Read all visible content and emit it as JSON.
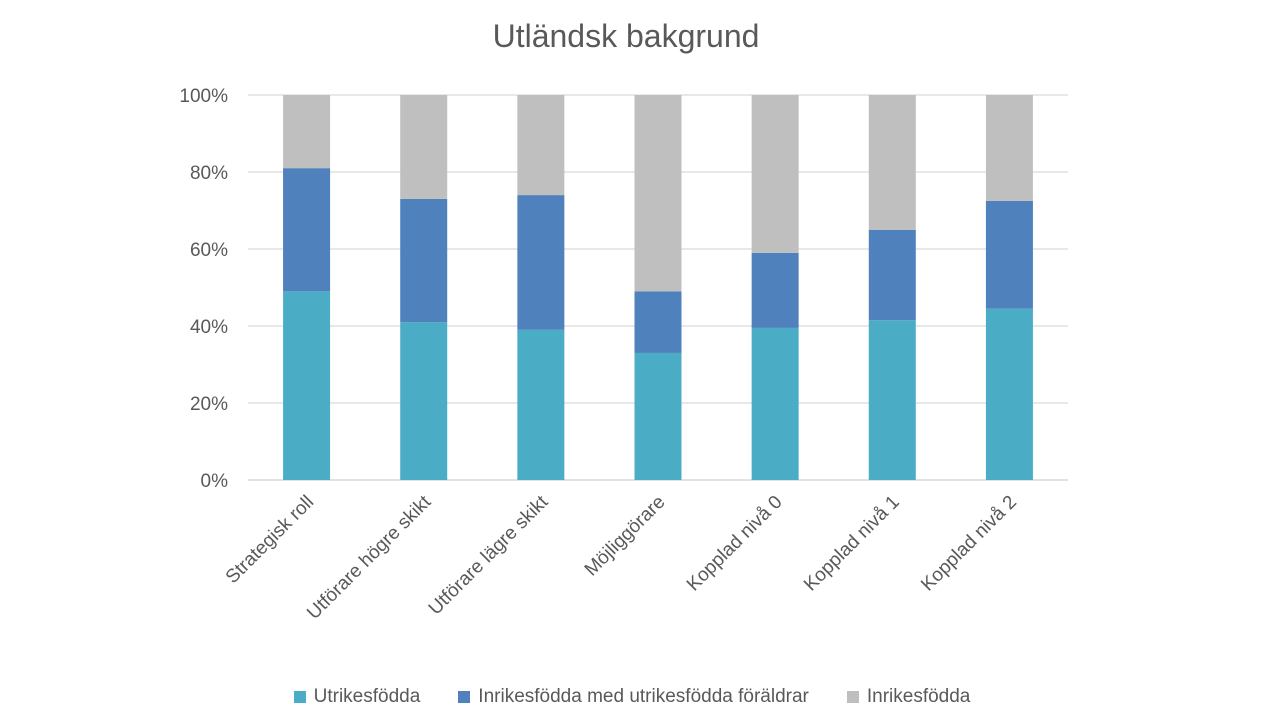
{
  "chart_data": {
    "type": "bar",
    "stacked": true,
    "title": "Utländsk bakgrund",
    "categories": [
      "Strategisk roll",
      "Utförare högre skikt",
      "Utförare lägre skikt",
      "Möjliggörare",
      "Kopplad nivå 0",
      "Kopplad nivå 1",
      "Kopplad nivå 2"
    ],
    "series": [
      {
        "name": "Utrikesfödda",
        "color": "#4bacc6",
        "values": [
          49,
          41,
          39,
          33,
          39.5,
          41.5,
          44.5
        ]
      },
      {
        "name": "Inrikesfödda med utrikesfödda föräldrar",
        "color": "#4f81bd",
        "values": [
          32,
          32,
          35,
          16,
          19.5,
          23.5,
          28
        ]
      },
      {
        "name": "Inrikesfödda",
        "color": "#bfbfbf",
        "values": [
          19,
          27,
          26,
          51,
          41,
          35,
          27.5
        ]
      }
    ],
    "yticks": [
      "0%",
      "20%",
      "40%",
      "60%",
      "80%",
      "100%"
    ],
    "ylim": [
      0,
      100
    ],
    "grid": true,
    "legend_position": "bottom"
  }
}
